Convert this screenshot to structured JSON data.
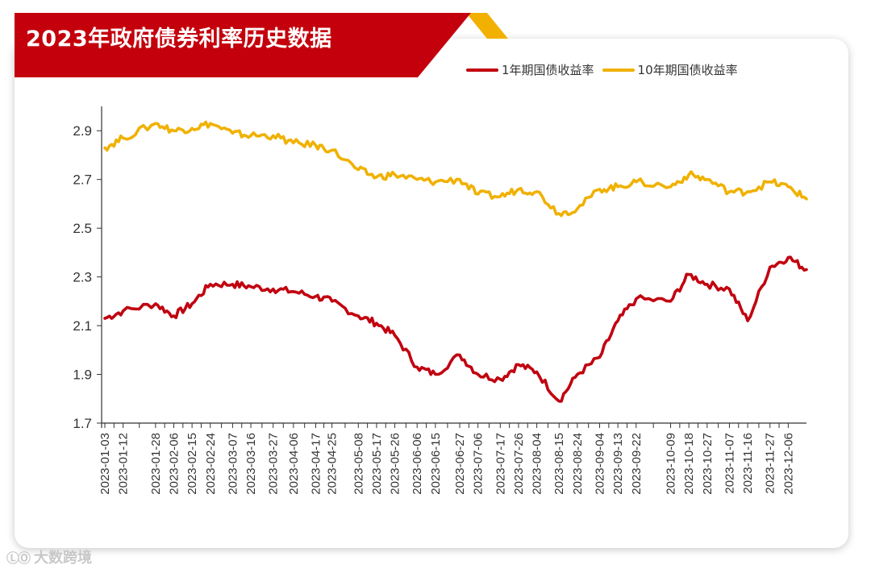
{
  "header": {
    "title": "2023年政府债券利率历史数据"
  },
  "watermark": {
    "text": "大数跨境"
  },
  "colors": {
    "banner": "#c4000c",
    "banner_accent": "#f2b000",
    "series1": "#c1000f",
    "series2": "#f0b100",
    "axis": "#333333"
  },
  "chart_data": {
    "type": "line",
    "title": "2023年政府债券利率历史数据",
    "xlabel": "",
    "ylabel": "",
    "ylim": [
      1.7,
      3.0
    ],
    "yticks": [
      "1.7",
      "1.9",
      "2.1",
      "2.3",
      "2.5",
      "2.7",
      "2.9"
    ],
    "grid": false,
    "legend_position": "top-right",
    "x_tick_labels": [
      "2023-01-03",
      "2023-01-12",
      "2023-01-28",
      "2023-02-06",
      "2023-02-15",
      "2023-02-24",
      "2023-03-07",
      "2023-03-16",
      "2023-03-27",
      "2023-04-06",
      "2023-04-17",
      "2023-04-25",
      "2023-05-08",
      "2023-05-17",
      "2023-05-26",
      "2023-06-06",
      "2023-06-15",
      "2023-06-27",
      "2023-07-06",
      "2023-07-17",
      "2023-07-26",
      "2023-08-04",
      "2023-08-15",
      "2023-08-24",
      "2023-09-04",
      "2023-09-13",
      "2023-09-22",
      "2023-10-09",
      "2023-10-18",
      "2023-10-27",
      "2023-11-07",
      "2023-11-16",
      "2023-11-27",
      "2023-12-06"
    ],
    "series": [
      {
        "name": "1年期国债收益率",
        "x": [
          "2023-01-03",
          "2023-01-12",
          "2023-01-28",
          "2023-02-06",
          "2023-02-15",
          "2023-02-24",
          "2023-03-07",
          "2023-03-16",
          "2023-03-27",
          "2023-04-06",
          "2023-04-17",
          "2023-04-25",
          "2023-05-08",
          "2023-05-17",
          "2023-05-26",
          "2023-06-06",
          "2023-06-15",
          "2023-06-27",
          "2023-07-06",
          "2023-07-17",
          "2023-07-26",
          "2023-08-04",
          "2023-08-15",
          "2023-08-24",
          "2023-09-04",
          "2023-09-13",
          "2023-09-22",
          "2023-10-09",
          "2023-10-18",
          "2023-10-27",
          "2023-11-07",
          "2023-11-16",
          "2023-11-27",
          "2023-12-06",
          "2023-12-15"
        ],
        "values": [
          2.13,
          2.16,
          2.19,
          2.14,
          2.19,
          2.27,
          2.27,
          2.26,
          2.25,
          2.24,
          2.22,
          2.2,
          2.14,
          2.11,
          2.06,
          1.93,
          1.9,
          1.98,
          1.9,
          1.88,
          1.94,
          1.91,
          1.79,
          1.9,
          1.97,
          2.12,
          2.21,
          2.2,
          2.31,
          2.27,
          2.25,
          2.12,
          2.34,
          2.38,
          2.33
        ]
      },
      {
        "name": "10年期国债收益率",
        "x": [
          "2023-01-03",
          "2023-01-12",
          "2023-01-28",
          "2023-02-06",
          "2023-02-15",
          "2023-02-24",
          "2023-03-07",
          "2023-03-16",
          "2023-03-27",
          "2023-04-06",
          "2023-04-17",
          "2023-04-25",
          "2023-05-08",
          "2023-05-17",
          "2023-05-26",
          "2023-06-06",
          "2023-06-15",
          "2023-06-27",
          "2023-07-06",
          "2023-07-17",
          "2023-07-26",
          "2023-08-04",
          "2023-08-15",
          "2023-08-24",
          "2023-09-04",
          "2023-09-13",
          "2023-09-22",
          "2023-10-09",
          "2023-10-18",
          "2023-10-27",
          "2023-11-07",
          "2023-11-16",
          "2023-11-27",
          "2023-12-06",
          "2023-12-15"
        ],
        "values": [
          2.83,
          2.87,
          2.93,
          2.9,
          2.91,
          2.93,
          2.89,
          2.88,
          2.88,
          2.85,
          2.84,
          2.82,
          2.74,
          2.71,
          2.72,
          2.7,
          2.69,
          2.7,
          2.64,
          2.63,
          2.66,
          2.65,
          2.56,
          2.58,
          2.66,
          2.67,
          2.69,
          2.67,
          2.72,
          2.7,
          2.65,
          2.65,
          2.69,
          2.67,
          2.62
        ]
      }
    ]
  }
}
